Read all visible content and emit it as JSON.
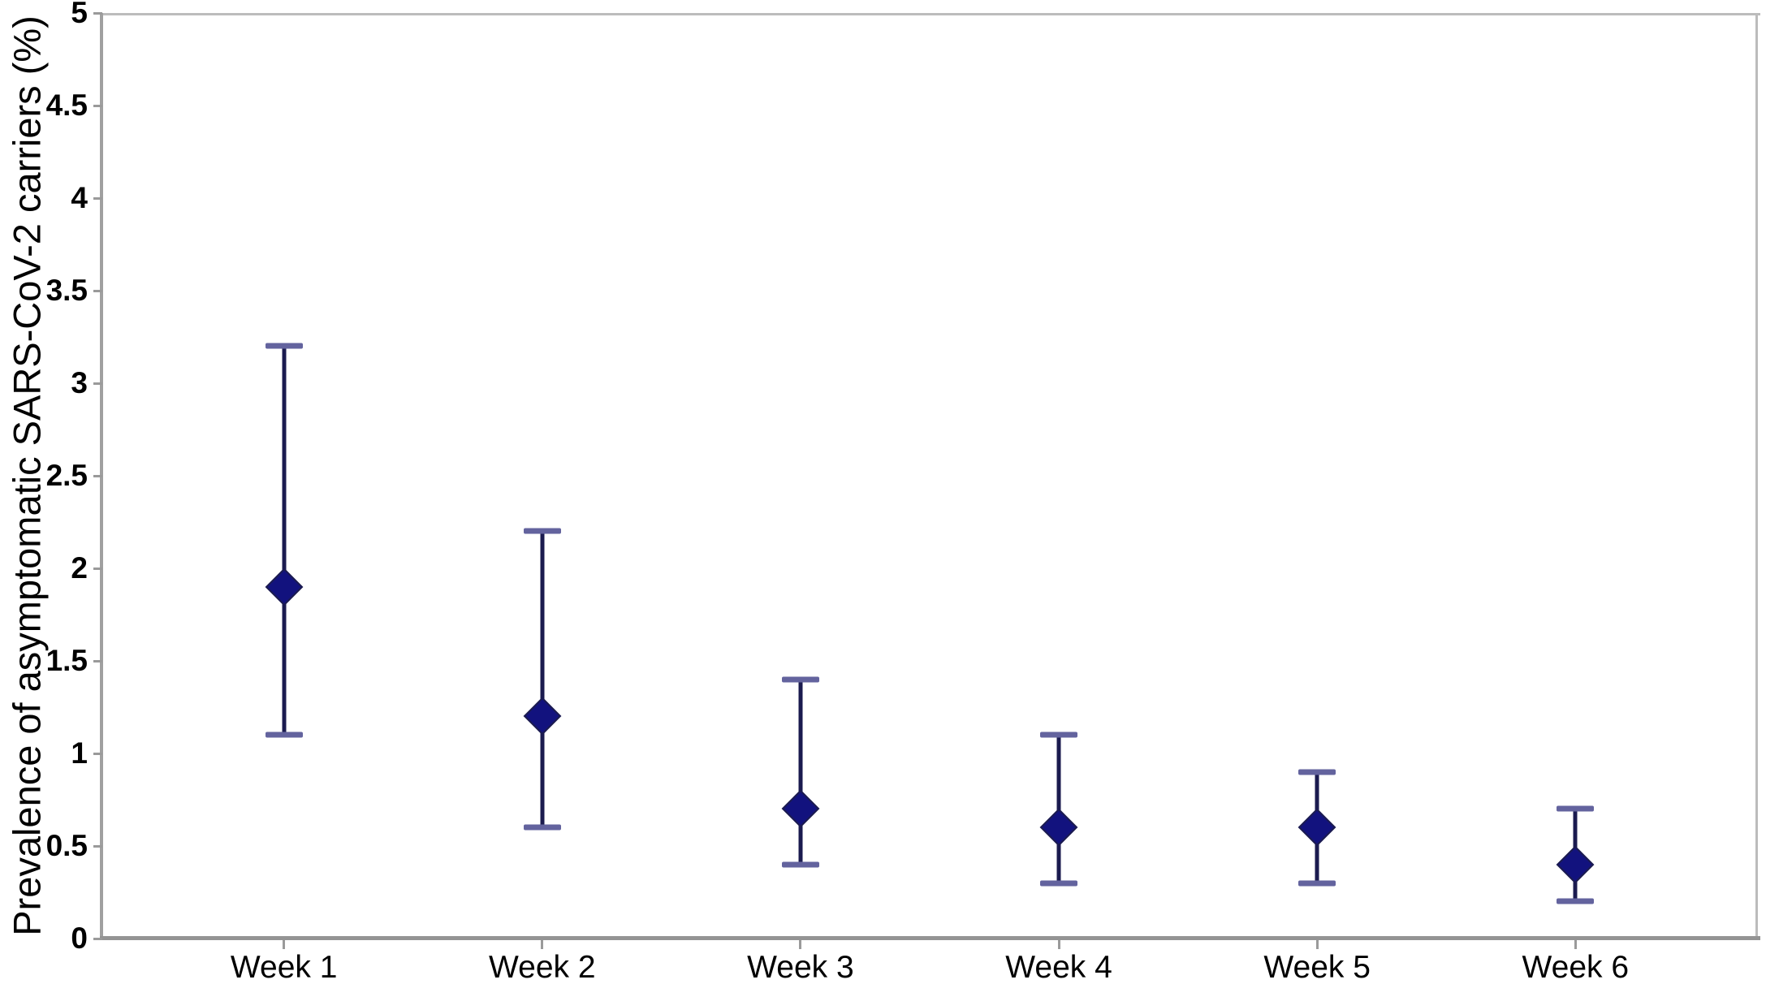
{
  "chart_data": {
    "type": "scatter",
    "title": "",
    "xlabel": "",
    "ylabel": "Prevalence of asymptomatic SARS-CoV-2 carriers (%)",
    "categories": [
      "Week 1",
      "Week 2",
      "Week 3",
      "Week 4",
      "Week 5",
      "Week 6"
    ],
    "series": [
      {
        "marker": "diamond",
        "values": [
          1.9,
          1.2,
          0.7,
          0.6,
          0.6,
          0.4
        ],
        "ci_low": [
          1.1,
          0.6,
          0.4,
          0.3,
          0.3,
          0.2
        ],
        "ci_high": [
          3.2,
          2.2,
          1.4,
          1.1,
          0.9,
          0.7
        ]
      }
    ],
    "ylim": [
      0,
      5
    ],
    "ytick_step": 0.5,
    "ytick_labels": [
      "5",
      "4.5",
      "4",
      "3.5",
      "3",
      "2.5",
      "2",
      "1.5",
      "1",
      "0.5",
      "0"
    ],
    "grid": "off",
    "legend": "none",
    "error_caps": true,
    "colors": {
      "marker_fill": "#12127e",
      "marker_edge": "#1b1b4f",
      "error_line": "#1b1b4f",
      "error_cap": "#63639e",
      "axis_line": "#9a9a9a",
      "frame_border": "#bcbcbc",
      "text": "#000000",
      "background": "#ffffff"
    }
  }
}
